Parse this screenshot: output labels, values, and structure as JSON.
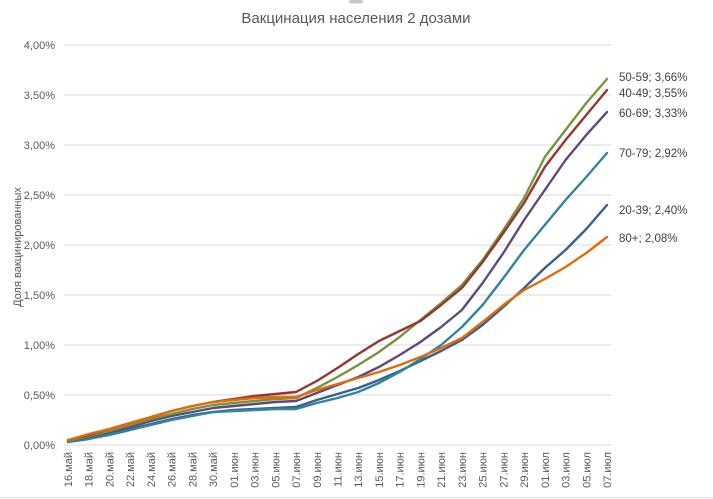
{
  "chart_data": {
    "type": "line",
    "title": "Вакцинация населения 2 дозами",
    "ylabel": "Доля вакцинированных",
    "xlabel": "",
    "ylim": [
      0,
      4
    ],
    "y_tick_step": 0.5,
    "y_tick_labels": [
      "0,00%",
      "0,50%",
      "1,00%",
      "1,50%",
      "2,00%",
      "2,50%",
      "3,00%",
      "3,50%",
      "4,00%"
    ],
    "grid": true,
    "legend_position": "end-of-line-labels-right",
    "categories": [
      "16.май",
      "18.май",
      "20.май",
      "22.май",
      "24.май",
      "26.май",
      "28.май",
      "30.май",
      "01.июн",
      "03.июн",
      "05.июн",
      "07.июн",
      "09.июн",
      "11.июн",
      "13.июн",
      "15.июн",
      "17.июн",
      "19.июн",
      "21.июн",
      "23.июн",
      "25.июн",
      "27.июн",
      "29.июн",
      "01.июл",
      "03.июл",
      "05.июл",
      "07.июл"
    ],
    "series": [
      {
        "name": "20-39",
        "label": "20-39; 2,40%",
        "final": 2.4,
        "color": "#366092",
        "values": [
          0.03,
          0.07,
          0.11,
          0.16,
          0.21,
          0.26,
          0.3,
          0.33,
          0.35,
          0.36,
          0.37,
          0.38,
          0.45,
          0.51,
          0.57,
          0.65,
          0.74,
          0.84,
          0.94,
          1.05,
          1.2,
          1.38,
          1.57,
          1.77,
          1.95,
          2.16,
          2.4
        ]
      },
      {
        "name": "70-79",
        "label": "70-79; 2,92%",
        "final": 2.92,
        "color": "#31849B",
        "values": [
          0.03,
          0.06,
          0.1,
          0.15,
          0.2,
          0.25,
          0.29,
          0.33,
          0.34,
          0.35,
          0.36,
          0.36,
          0.42,
          0.47,
          0.53,
          0.62,
          0.73,
          0.86,
          1.0,
          1.18,
          1.4,
          1.67,
          1.95,
          2.2,
          2.45,
          2.68,
          2.92
        ]
      },
      {
        "name": "60-69",
        "label": "60-69; 3,33%",
        "final": 3.33,
        "color": "#5F497A",
        "values": [
          0.04,
          0.08,
          0.13,
          0.18,
          0.24,
          0.29,
          0.33,
          0.37,
          0.39,
          0.41,
          0.43,
          0.44,
          0.52,
          0.6,
          0.68,
          0.78,
          0.9,
          1.03,
          1.18,
          1.35,
          1.62,
          1.92,
          2.25,
          2.55,
          2.85,
          3.1,
          3.33
        ]
      },
      {
        "name": "50-59",
        "label": "50-59; 3,66%",
        "final": 3.66,
        "color": "#77933C",
        "values": [
          0.04,
          0.09,
          0.14,
          0.2,
          0.26,
          0.31,
          0.36,
          0.4,
          0.42,
          0.44,
          0.46,
          0.47,
          0.57,
          0.68,
          0.8,
          0.93,
          1.08,
          1.25,
          1.42,
          1.6,
          1.85,
          2.15,
          2.47,
          2.88,
          3.15,
          3.42,
          3.66
        ]
      },
      {
        "name": "40-49",
        "label": "40-49; 3,55%",
        "final": 3.55,
        "color": "#943634",
        "values": [
          0.05,
          0.1,
          0.16,
          0.22,
          0.28,
          0.34,
          0.39,
          0.43,
          0.46,
          0.49,
          0.51,
          0.53,
          0.64,
          0.77,
          0.91,
          1.04,
          1.14,
          1.24,
          1.4,
          1.57,
          1.83,
          2.12,
          2.42,
          2.78,
          3.05,
          3.3,
          3.55
        ]
      },
      {
        "name": "80+",
        "label": "80+; 2,08%",
        "final": 2.08,
        "color": "#E36C09",
        "values": [
          0.05,
          0.11,
          0.16,
          0.22,
          0.28,
          0.34,
          0.39,
          0.43,
          0.45,
          0.47,
          0.48,
          0.48,
          0.55,
          0.61,
          0.67,
          0.73,
          0.8,
          0.88,
          0.97,
          1.07,
          1.23,
          1.4,
          1.55,
          1.66,
          1.78,
          1.92,
          2.08
        ]
      }
    ]
  }
}
